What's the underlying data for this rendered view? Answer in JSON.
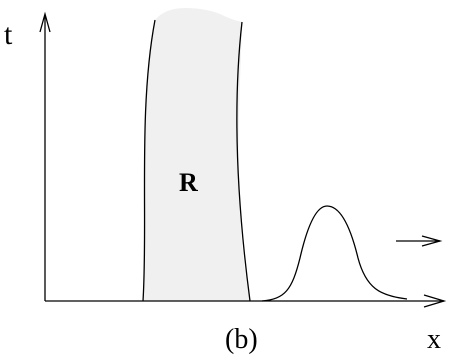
{
  "axes": {
    "vertical_label": "t",
    "horizontal_label": "x"
  },
  "region": {
    "label": "R",
    "fill_color": "#f0f0f0"
  },
  "panel_label": "(b)"
}
